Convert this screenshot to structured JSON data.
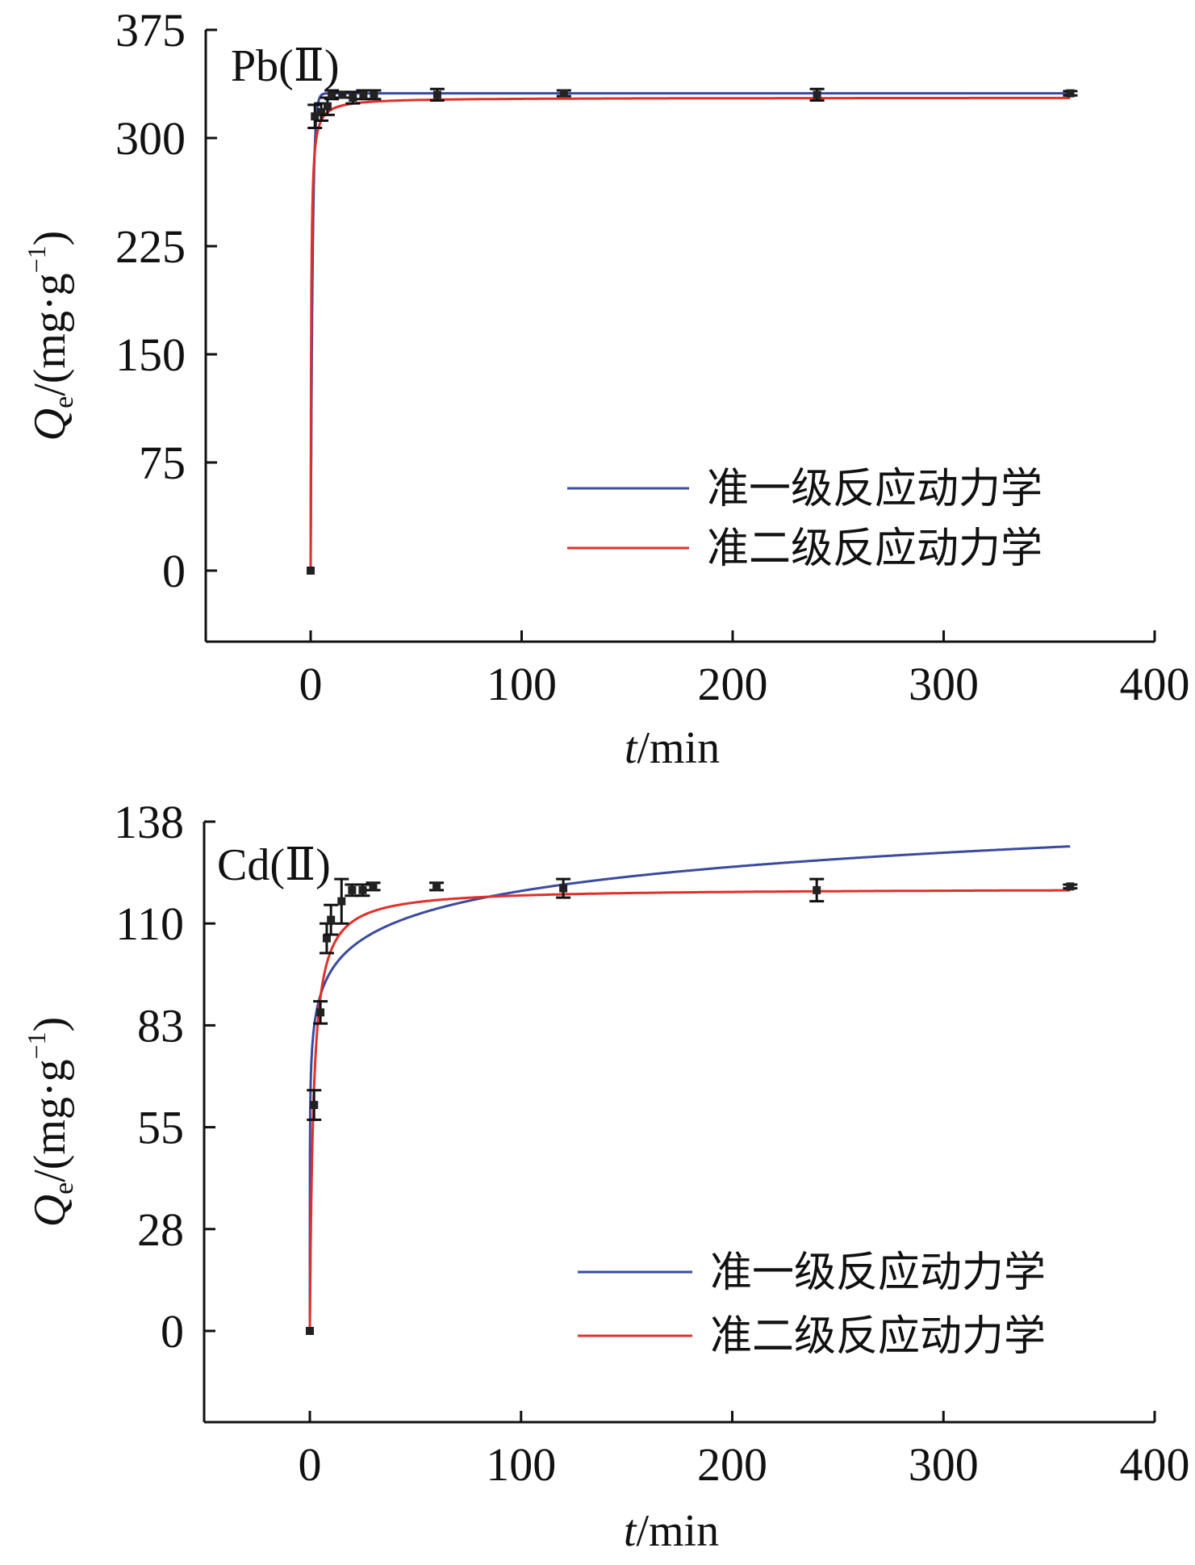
{
  "chart_data": [
    {
      "type": "line",
      "title": "Pb(Ⅱ)",
      "xlabel_italic": "t",
      "xlabel_rest": "/min",
      "ylabel_italic": "Q",
      "ylabel_sub": "e",
      "ylabel_rest": "/(mg·g",
      "ylabel_sup": "−1",
      "ylabel_end": ")",
      "xlim": [
        -50,
        400
      ],
      "ylim": [
        -50,
        375
      ],
      "xticks": [
        0,
        100,
        200,
        300,
        400
      ],
      "xtick_labels": [
        "0",
        "100",
        "200",
        "300",
        "400"
      ],
      "yticks": [
        0,
        75,
        150,
        225,
        300,
        375
      ],
      "ytick_labels": [
        "0",
        "75",
        "150",
        "225",
        "300",
        "375"
      ],
      "legend": "bottom-right",
      "points": {
        "t": [
          0,
          2,
          5,
          8,
          10,
          15,
          20,
          25,
          30,
          60,
          120,
          240,
          360
        ],
        "q": [
          0,
          315,
          318,
          322,
          330,
          330,
          328,
          330,
          330,
          330,
          331,
          330,
          331
        ],
        "err": [
          0,
          8,
          6,
          6,
          3,
          2,
          4,
          3,
          3,
          4,
          2,
          4,
          1.5
        ]
      },
      "series": [
        {
          "name": "准一级反应动力学",
          "color": "#3a4aa0",
          "model": "pfo",
          "qe": 331,
          "k": 1.1
        },
        {
          "name": "准二级反应动力学",
          "color": "#e0302a",
          "model": "pso",
          "qe": 328,
          "k": 0.012
        }
      ]
    },
    {
      "type": "line",
      "title": "Cd(Ⅱ)",
      "xlabel_italic": "t",
      "xlabel_rest": "/min",
      "ylabel_italic": "Q",
      "ylabel_sub": "e",
      "ylabel_rest": "/(mg·g",
      "ylabel_sup": "−1",
      "ylabel_end": ")",
      "xlim": [
        -50,
        400
      ],
      "ylim": [
        -25,
        137.5
      ],
      "xticks": [
        0,
        100,
        200,
        300,
        400
      ],
      "xtick_labels": [
        "0",
        "100",
        "200",
        "300",
        "400"
      ],
      "yticks": [
        0,
        27.5,
        55,
        82.5,
        110,
        137.5
      ],
      "ytick_labels": [
        "0",
        "28",
        "55",
        "83",
        "110",
        "138"
      ],
      "legend": "bottom-right",
      "points": {
        "t": [
          0,
          2,
          5,
          8,
          10,
          15,
          20,
          25,
          30,
          60,
          120,
          240,
          360
        ],
        "q": [
          0,
          61,
          86,
          106,
          111,
          116,
          119,
          119,
          120,
          120,
          119.5,
          119,
          120
        ],
        "err": [
          0,
          4,
          3,
          4,
          4,
          6,
          1.5,
          1.5,
          1,
          1,
          2.5,
          3,
          0.5
        ]
      },
      "series": [
        {
          "name": "准一级反应动力学",
          "color": "#3a4aa0",
          "model": "log",
          "a": 75.5,
          "b": 9.4
        },
        {
          "name": "准二级反应动力学",
          "color": "#e0302a",
          "model": "pso",
          "qe": 119.5,
          "k": 0.0051
        }
      ]
    }
  ]
}
